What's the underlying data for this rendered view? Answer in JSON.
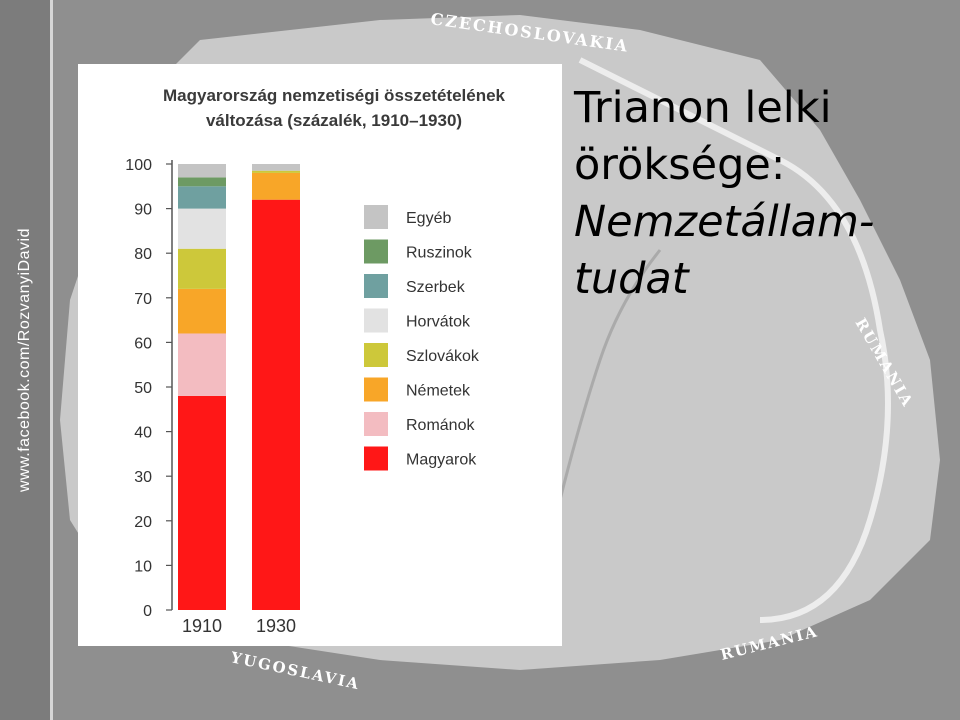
{
  "side_text": "www.facebook.com/RozvanyiDavid",
  "background_map": {
    "labels": [
      "CZECHOSLOVAKIA",
      "RUMANIA",
      "RUMANIA",
      "YUGOSLAVIA"
    ]
  },
  "slide_title": {
    "line1": "Trianon lelki",
    "line2": "öröksége:",
    "line3": "Nemzetállam-",
    "line4": "tudat"
  },
  "colors": {
    "Egyéb": "#c4c4c4",
    "Ruszinok": "#6d9a63",
    "Szerbek": "#6fa0a0",
    "Horvátok": "#e2e2e2",
    "Szlovákok": "#cdc83a",
    "Németek": "#f8a628",
    "Románok": "#f3bcc1",
    "Magyarok": "#ff1717"
  },
  "chart_data": {
    "type": "bar",
    "stacked": true,
    "title_line1": "Magyarország nemzetiségi összetételének",
    "title_line2": "változása (százalék, 1910–1930)",
    "categories": [
      "1910",
      "1930"
    ],
    "ylim": [
      0,
      100
    ],
    "yticks": [
      "0",
      "10",
      "20",
      "30",
      "40",
      "50",
      "60",
      "70",
      "80",
      "90",
      "100"
    ],
    "series": [
      {
        "name": "Magyarok",
        "values": [
          48,
          92
        ]
      },
      {
        "name": "Románok",
        "values": [
          14,
          0
        ]
      },
      {
        "name": "Németek",
        "values": [
          10,
          6
        ]
      },
      {
        "name": "Szlovákok",
        "values": [
          9,
          0.5
        ]
      },
      {
        "name": "Horvátok",
        "values": [
          9,
          0
        ]
      },
      {
        "name": "Szerbek",
        "values": [
          5,
          0
        ]
      },
      {
        "name": "Ruszinok",
        "values": [
          2,
          0
        ]
      },
      {
        "name": "Egyéb",
        "values": [
          3,
          1.5
        ]
      }
    ],
    "legend": [
      "Egyéb",
      "Ruszinok",
      "Szerbek",
      "Horvátok",
      "Szlovákok",
      "Németek",
      "Románok",
      "Magyarok"
    ],
    "legend_position": "right"
  }
}
